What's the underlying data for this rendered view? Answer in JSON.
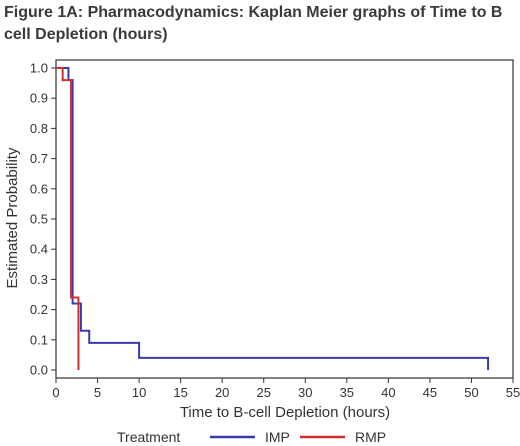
{
  "chart_data": {
    "type": "line",
    "title": "Figure 1A: Pharmacodynamics: Kaplan Meier graphs of Time to B cell Depletion (hours)",
    "xlabel": "Time to B-cell Depletion (hours)",
    "ylabel": "Estimated Probability",
    "xlim": [
      0,
      55
    ],
    "ylim": [
      0,
      1.0
    ],
    "x_ticks": [
      "0",
      "5",
      "10",
      "15",
      "20",
      "25",
      "30",
      "35",
      "40",
      "45",
      "50",
      "55"
    ],
    "y_ticks": [
      "0.0",
      "0.1",
      "0.2",
      "0.3",
      "0.4",
      "0.5",
      "0.6",
      "0.7",
      "0.8",
      "0.9",
      "1.0"
    ],
    "grid": false,
    "step": true,
    "legend": {
      "title": "Treatment",
      "placement": "bottom"
    },
    "series": [
      {
        "name": "IMP",
        "color": "#3b3bb0",
        "x": [
          0,
          1.5,
          1.5,
          2,
          2,
          3,
          3,
          4,
          4,
          10,
          10,
          52,
          52
        ],
        "y": [
          1.0,
          1.0,
          0.96,
          0.96,
          0.22,
          0.22,
          0.13,
          0.13,
          0.09,
          0.09,
          0.04,
          0.04,
          0.0
        ]
      },
      {
        "name": "RMP",
        "color": "#d03030",
        "x": [
          0,
          0.8,
          0.8,
          1.8,
          1.8,
          2.7,
          2.7
        ],
        "y": [
          1.0,
          1.0,
          0.96,
          0.96,
          0.24,
          0.24,
          0.0
        ]
      }
    ]
  }
}
